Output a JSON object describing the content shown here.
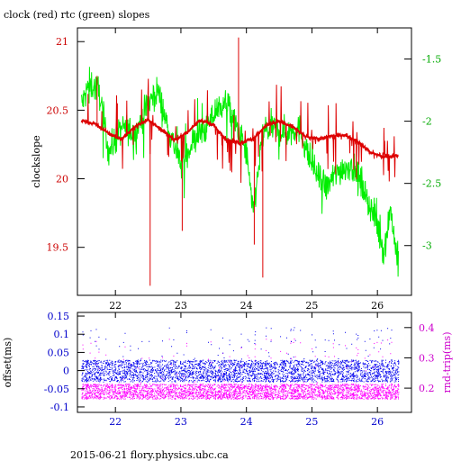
{
  "title": "clock (red) rtc (green) slopes",
  "footer": "2015-06-21 flory.physics.ubc.ca",
  "colors": {
    "clock": "#dd0000",
    "rtc": "#00ee00",
    "offset": "#0000ee",
    "rndtrip": "#ff00ff",
    "axis_black": "#000000",
    "axis_red": "#cc0000",
    "axis_green": "#00aa00",
    "axis_blue": "#0000cc",
    "axis_magenta": "#cc00cc"
  },
  "chart_data": [
    {
      "type": "line",
      "panel": "top",
      "xlim": [
        21.42,
        26.52
      ],
      "x_ticks": [
        "22",
        "23",
        "24",
        "25",
        "26"
      ],
      "ylabel": "clockslope",
      "ylim": [
        19.15,
        21.1
      ],
      "y_ticks": [
        "19.5",
        "20",
        "20.5",
        "21"
      ],
      "y2lim": [
        -3.4,
        -1.25
      ],
      "y2_ticks": [
        "-3",
        "-2.5",
        "-2",
        "-1.5"
      ],
      "series": [
        {
          "name": "clock",
          "axis": "left",
          "x": [
            21.5,
            21.7,
            21.9,
            22.1,
            22.3,
            22.5,
            22.7,
            22.9,
            23.1,
            23.3,
            23.5,
            23.7,
            23.9,
            24.1,
            24.3,
            24.5,
            24.7,
            24.9,
            25.1,
            25.3,
            25.5,
            25.7,
            25.9,
            26.1,
            26.3
          ],
          "values": [
            20.42,
            20.4,
            20.33,
            20.29,
            20.38,
            20.43,
            20.36,
            20.28,
            20.34,
            20.43,
            20.39,
            20.28,
            20.26,
            20.29,
            20.39,
            20.42,
            20.38,
            20.31,
            20.29,
            20.31,
            20.32,
            20.27,
            20.19,
            20.16,
            20.17
          ]
        },
        {
          "name": "rtc",
          "axis": "right",
          "x": [
            21.5,
            21.6,
            21.75,
            21.9,
            22.1,
            22.3,
            22.5,
            22.65,
            22.8,
            23.0,
            23.2,
            23.4,
            23.55,
            23.7,
            23.85,
            24.0,
            24.1,
            24.25,
            24.4,
            24.6,
            24.8,
            25.0,
            25.2,
            25.4,
            25.6,
            25.8,
            26.0,
            26.1,
            26.2,
            26.3
          ],
          "values": [
            -1.85,
            -1.7,
            -1.75,
            -2.25,
            -2.05,
            -2.1,
            -1.85,
            -1.75,
            -2.05,
            -2.35,
            -2.15,
            -2.05,
            -1.9,
            -1.85,
            -2.05,
            -2.25,
            -2.75,
            -2.1,
            -2.05,
            -2.1,
            -2.05,
            -2.35,
            -2.55,
            -2.4,
            -2.35,
            -2.55,
            -2.85,
            -3.05,
            -2.7,
            -3.1
          ]
        }
      ]
    },
    {
      "type": "scatter",
      "panel": "bottom",
      "xlim": [
        21.42,
        26.52
      ],
      "x_ticks": [
        "22",
        "23",
        "24",
        "25",
        "26"
      ],
      "ylabel": "offset(ms)",
      "ylim": [
        -0.115,
        0.16
      ],
      "y_ticks": [
        "-0.1",
        "-0.05",
        "0",
        "0.05",
        "0.1",
        "0.15"
      ],
      "y2label": "rnd-trip(ms)",
      "y2lim": [
        0.12,
        0.45
      ],
      "y2_ticks": [
        "0.2",
        "0.3",
        "0.4"
      ],
      "series": [
        {
          "name": "offset",
          "axis": "left",
          "center": 0.0,
          "spread": 0.03
        },
        {
          "name": "rnd-trip",
          "axis": "right",
          "center": 0.19,
          "spread": 0.025
        }
      ]
    }
  ]
}
